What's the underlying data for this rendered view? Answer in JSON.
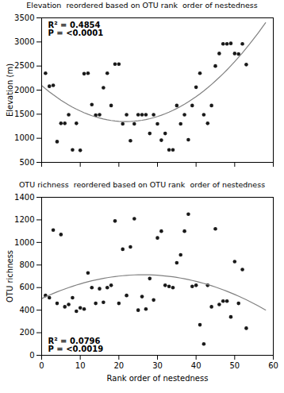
{
  "chart_data": [
    {
      "type": "scatter",
      "title": "Elevation  reordered based on OTU rank  order of nestedness",
      "ylabel": "Elevation (m)",
      "annotations": [
        "R² = 0.4854",
        "P = <0.0001"
      ],
      "series": [
        {
          "type": "scatter",
          "color": "#1a1a1a",
          "x": [
            1,
            2,
            3,
            4,
            5,
            6,
            7,
            8,
            9,
            10,
            11,
            12,
            13,
            14,
            15,
            16,
            17,
            18,
            19,
            20,
            21,
            22,
            23,
            24,
            25,
            26,
            27,
            28,
            29,
            30,
            31,
            32,
            33,
            34,
            35,
            36,
            37,
            38,
            39,
            40,
            41,
            42,
            43,
            44,
            45,
            46,
            47,
            48,
            49,
            50,
            51,
            52,
            53
          ],
          "values": [
            2350,
            2080,
            2100,
            930,
            1310,
            1310,
            1490,
            760,
            1310,
            750,
            2340,
            2350,
            1700,
            1480,
            1490,
            2050,
            2350,
            1680,
            2540,
            2540,
            1300,
            1490,
            950,
            1300,
            1490,
            1490,
            1490,
            1100,
            1490,
            1300,
            960,
            1100,
            760,
            760,
            1680,
            1300,
            1490,
            970,
            1680,
            2060,
            2350,
            1490,
            1310,
            1680,
            2500,
            2760,
            2960,
            2960,
            2970,
            2760,
            2750,
            2960,
            2530
          ]
        },
        {
          "type": "line",
          "color": "#808080",
          "x": [
            0,
            1,
            2,
            3,
            4,
            5,
            6,
            7,
            8,
            9,
            10,
            11,
            12,
            13,
            14,
            15,
            16,
            17,
            18,
            19,
            20,
            21,
            22,
            23,
            24,
            25,
            26,
            27,
            28,
            29,
            30,
            31,
            32,
            33,
            34,
            35,
            36,
            37,
            38,
            39,
            40,
            41,
            42,
            43,
            44,
            45,
            46,
            47,
            48,
            49,
            50,
            51,
            52,
            53,
            54,
            55,
            56,
            57,
            58
          ],
          "values": [
            2095.1,
            2028.1,
            1964.3,
            1903.6,
            1846.0,
            1791.6,
            1740.3,
            1692.2,
            1647.1,
            1605.3,
            1566.6,
            1531.0,
            1498.5,
            1469.2,
            1443.0,
            1420.0,
            1400.1,
            1383.3,
            1369.7,
            1359.3,
            1351.9,
            1347.7,
            1346.6,
            1348.7,
            1353.9,
            1362.3,
            1373.8,
            1388.4,
            1406.2,
            1427.1,
            1451.2,
            1478.3,
            1508.7,
            1542.1,
            1578.7,
            1618.5,
            1661.4,
            1707.4,
            1756.5,
            1808.8,
            1864.3,
            1922.8,
            1984.6,
            2049.4,
            2117.4,
            2188.5,
            2262.8,
            2340.2,
            2420.8,
            2504.4,
            2591.3,
            2681.2,
            2774.3,
            2870.6,
            2970.0,
            3072.5,
            3178.1,
            3286.9,
            3398.9
          ]
        }
      ],
      "xlim": [
        0,
        60
      ],
      "xticks": [
        0,
        10,
        20,
        30,
        40,
        50,
        60
      ],
      "ylim": [
        500,
        3500
      ],
      "yticks": [
        500,
        1000,
        1500,
        2000,
        2500,
        3000,
        3500
      ],
      "grid": false,
      "tick_labels": "y"
    },
    {
      "type": "scatter",
      "title": "OTU richness  reordered based on OTU rank  order of nestedness",
      "xlabel": "Rank order of nestedness",
      "ylabel": "OTU richness",
      "annotations": [
        "R² = 0.0796",
        "P = <0.0019"
      ],
      "series": [
        {
          "type": "scatter",
          "color": "#1a1a1a",
          "x": [
            1,
            2,
            3,
            4,
            5,
            6,
            7,
            8,
            9,
            10,
            11,
            12,
            13,
            14,
            15,
            16,
            17,
            18,
            19,
            20,
            21,
            22,
            23,
            24,
            25,
            26,
            27,
            28,
            29,
            30,
            31,
            32,
            33,
            34,
            35,
            36,
            37,
            38,
            39,
            40,
            41,
            42,
            43,
            44,
            45,
            46,
            47,
            48,
            49,
            50,
            51,
            52,
            53
          ],
          "values": [
            530,
            510,
            1110,
            460,
            1070,
            430,
            450,
            510,
            390,
            420,
            410,
            730,
            600,
            460,
            590,
            470,
            600,
            620,
            1190,
            460,
            940,
            530,
            960,
            1210,
            400,
            520,
            410,
            680,
            490,
            1040,
            1100,
            620,
            610,
            600,
            820,
            890,
            1100,
            1250,
            610,
            620,
            270,
            100,
            620,
            430,
            1120,
            450,
            480,
            480,
            340,
            830,
            460,
            760,
            240
          ]
        },
        {
          "type": "line",
          "color": "#808080",
          "x": [
            0,
            1,
            2,
            3,
            4,
            5,
            6,
            7,
            8,
            9,
            10,
            11,
            12,
            13,
            14,
            15,
            16,
            17,
            18,
            19,
            20,
            21,
            22,
            23,
            24,
            25,
            26,
            27,
            28,
            29,
            30,
            31,
            32,
            33,
            34,
            35,
            36,
            37,
            38,
            39,
            40,
            41,
            42,
            43,
            44,
            45,
            46,
            47,
            48,
            49,
            50,
            51,
            52,
            53,
            54,
            55,
            56,
            57,
            58
          ],
          "values": [
            501.9,
            517.8,
            533.0,
            547.6,
            561.6,
            575.0,
            587.8,
            600.0,
            611.5,
            622.4,
            632.7,
            642.4,
            651.5,
            660.0,
            667.8,
            675.0,
            681.6,
            687.6,
            693.0,
            697.7,
            701.9,
            705.4,
            708.3,
            710.6,
            712.2,
            713.3,
            713.7,
            713.5,
            712.7,
            711.3,
            709.3,
            706.6,
            703.3,
            699.5,
            695.0,
            689.8,
            684.1,
            677.7,
            670.8,
            663.2,
            655.0,
            646.1,
            636.7,
            626.6,
            616.0,
            604.7,
            592.8,
            580.2,
            567.1,
            553.3,
            538.9,
            523.9,
            508.3,
            492.1,
            475.2,
            457.8,
            439.7,
            421.0,
            401.7
          ]
        }
      ],
      "xlim": [
        0,
        60
      ],
      "xticks": [
        0,
        10,
        20,
        30,
        40,
        50,
        60
      ],
      "ylim": [
        0,
        1400
      ],
      "yticks": [
        0,
        200,
        400,
        600,
        800,
        1000,
        1200,
        1400
      ],
      "grid": false
    }
  ]
}
